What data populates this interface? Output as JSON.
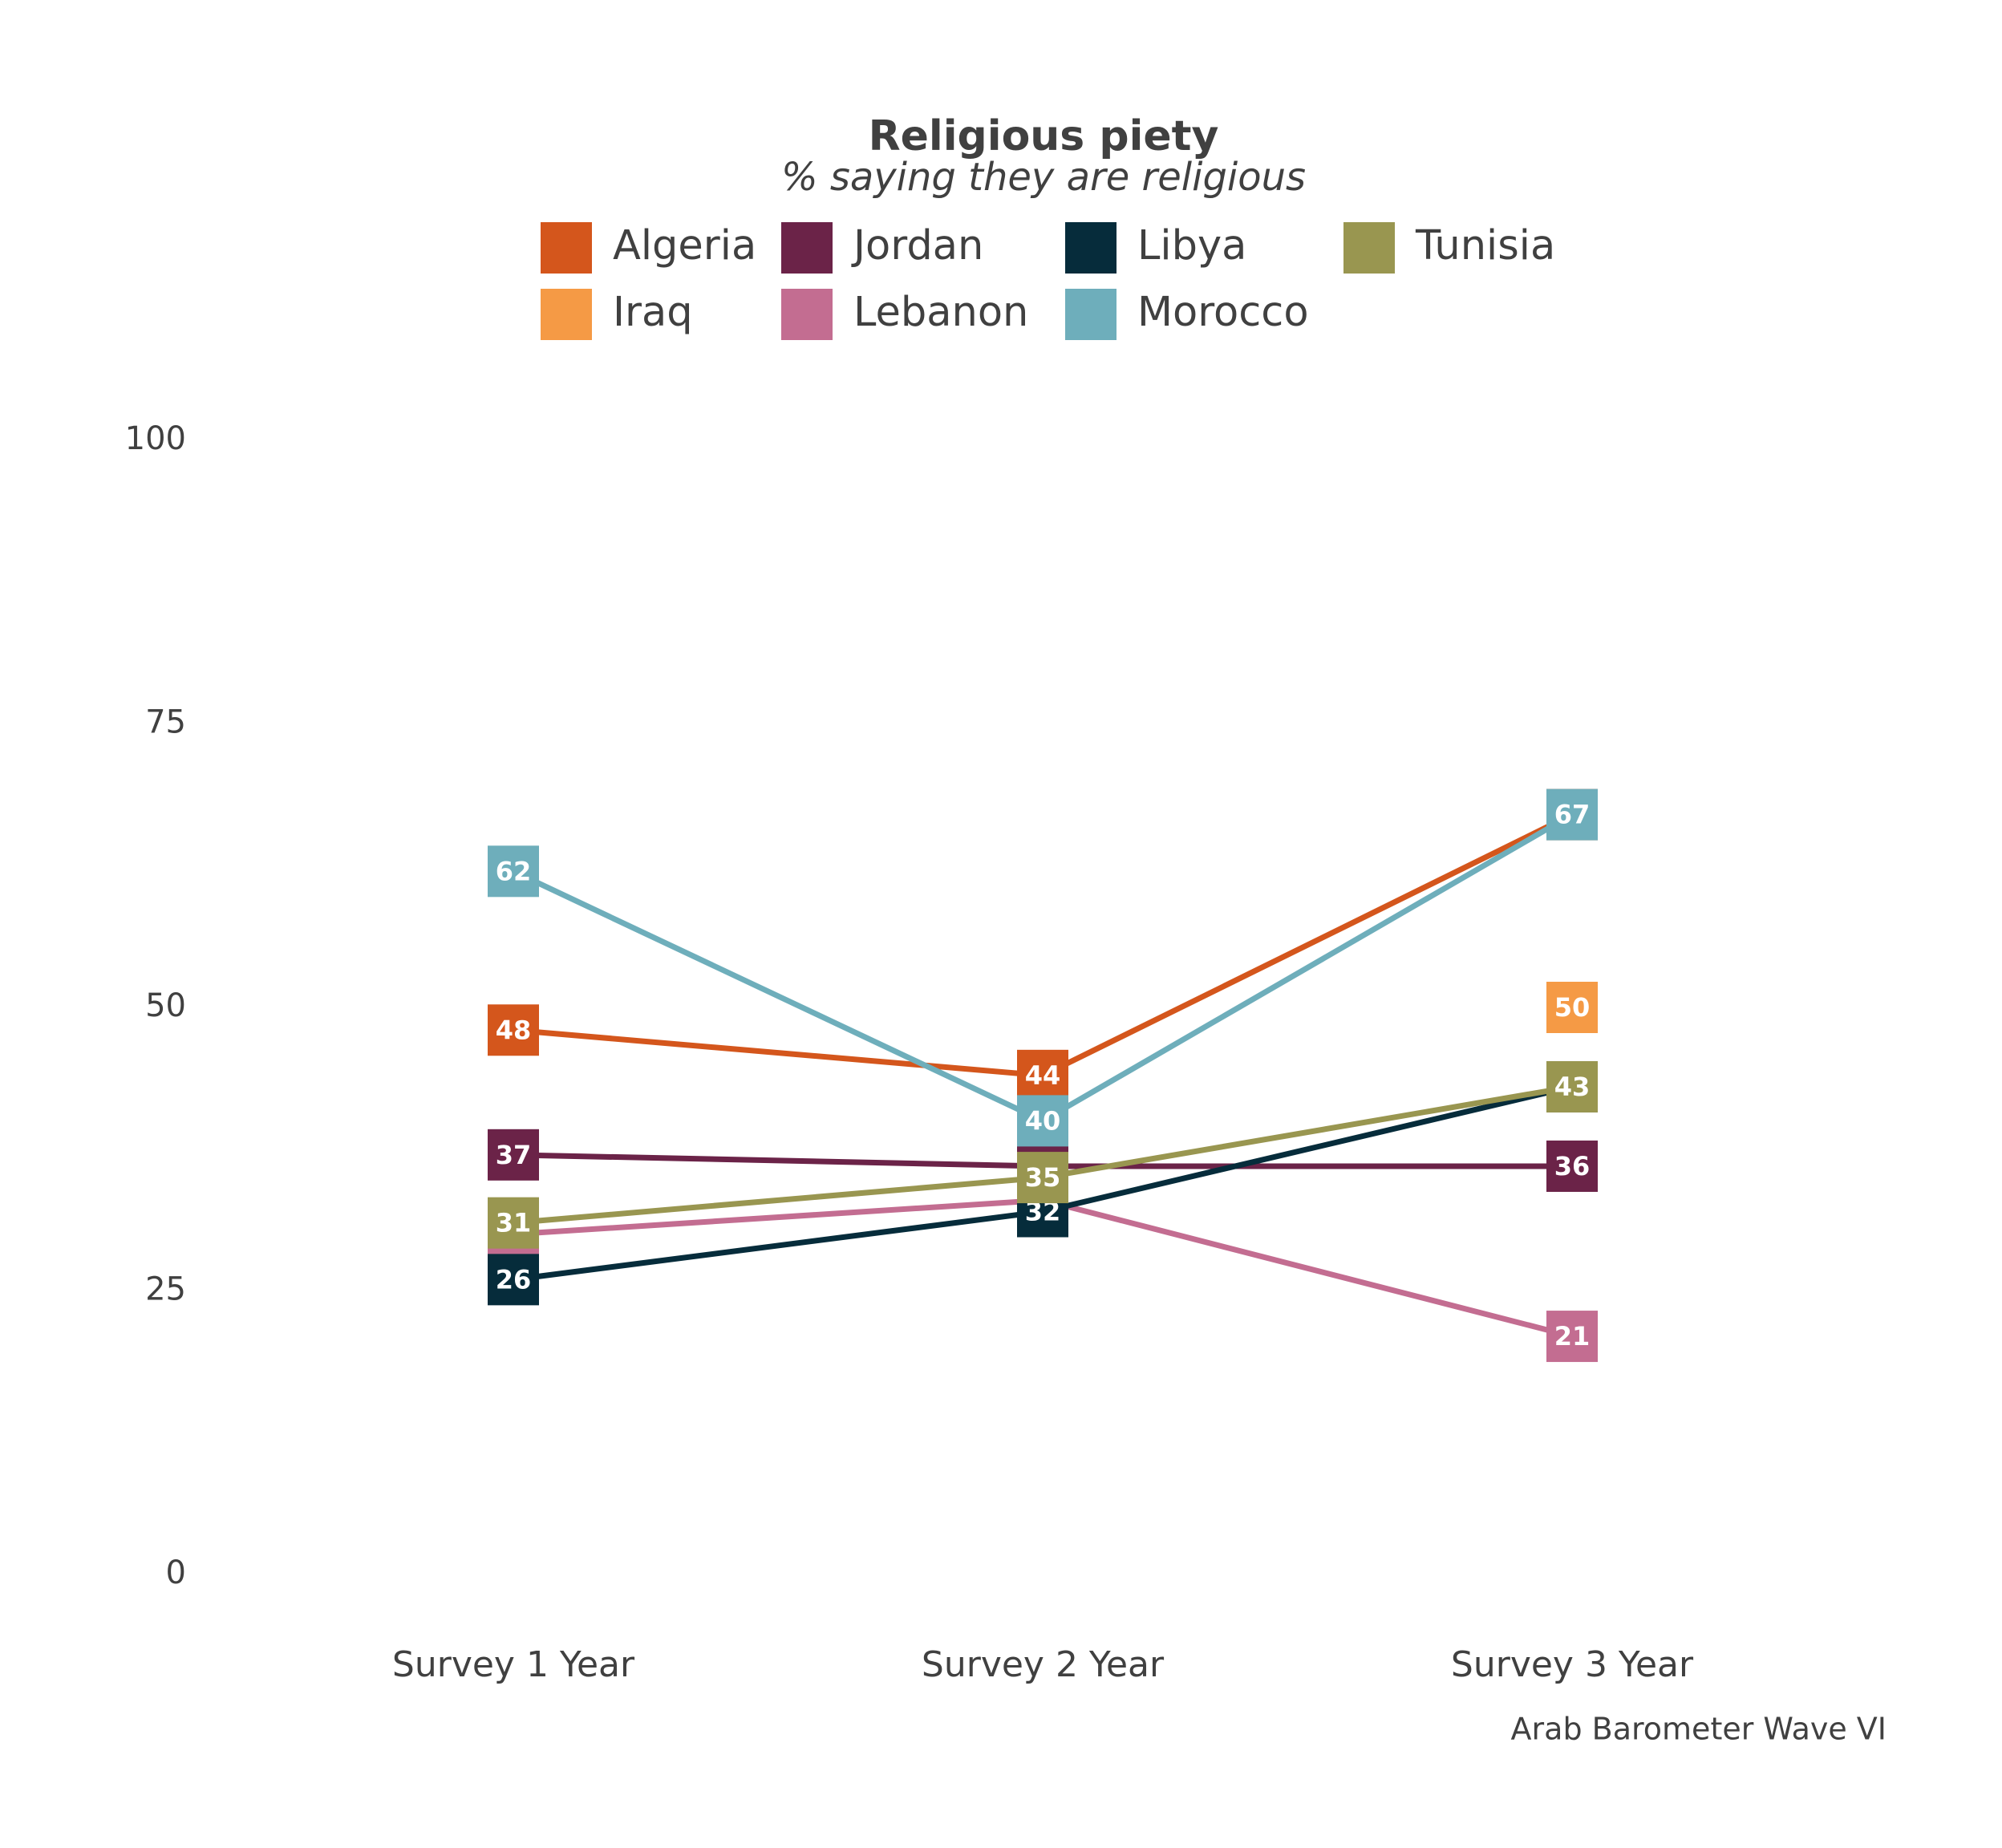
{
  "chart_data": {
    "type": "line",
    "title": "Religious piety",
    "subtitle": "% saying they are religious",
    "caption": "Arab Barometer Wave VI",
    "categories": [
      "Survey 1 Year",
      "Survey 2 Year",
      "Survey 3 Year"
    ],
    "series": [
      {
        "name": "Algeria",
        "color": "#d4561c",
        "values": [
          48,
          44,
          67
        ]
      },
      {
        "name": "Iraq",
        "color": "#f59a45",
        "values": [
          null,
          null,
          50
        ]
      },
      {
        "name": "Jordan",
        "color": "#6b2348",
        "values": [
          37,
          36,
          36
        ]
      },
      {
        "name": "Lebanon",
        "color": "#c36d91",
        "values": [
          30,
          33,
          21
        ]
      },
      {
        "name": "Libya",
        "color": "#062c3b",
        "values": [
          26,
          32,
          43
        ]
      },
      {
        "name": "Morocco",
        "color": "#6eaebb",
        "values": [
          62,
          40,
          67
        ]
      },
      {
        "name": "Tunisia",
        "color": "#999650",
        "values": [
          31,
          35,
          43
        ]
      }
    ],
    "ylim": [
      0,
      100
    ],
    "yticks": [
      0,
      25,
      50,
      75,
      100
    ],
    "grid": false
  }
}
